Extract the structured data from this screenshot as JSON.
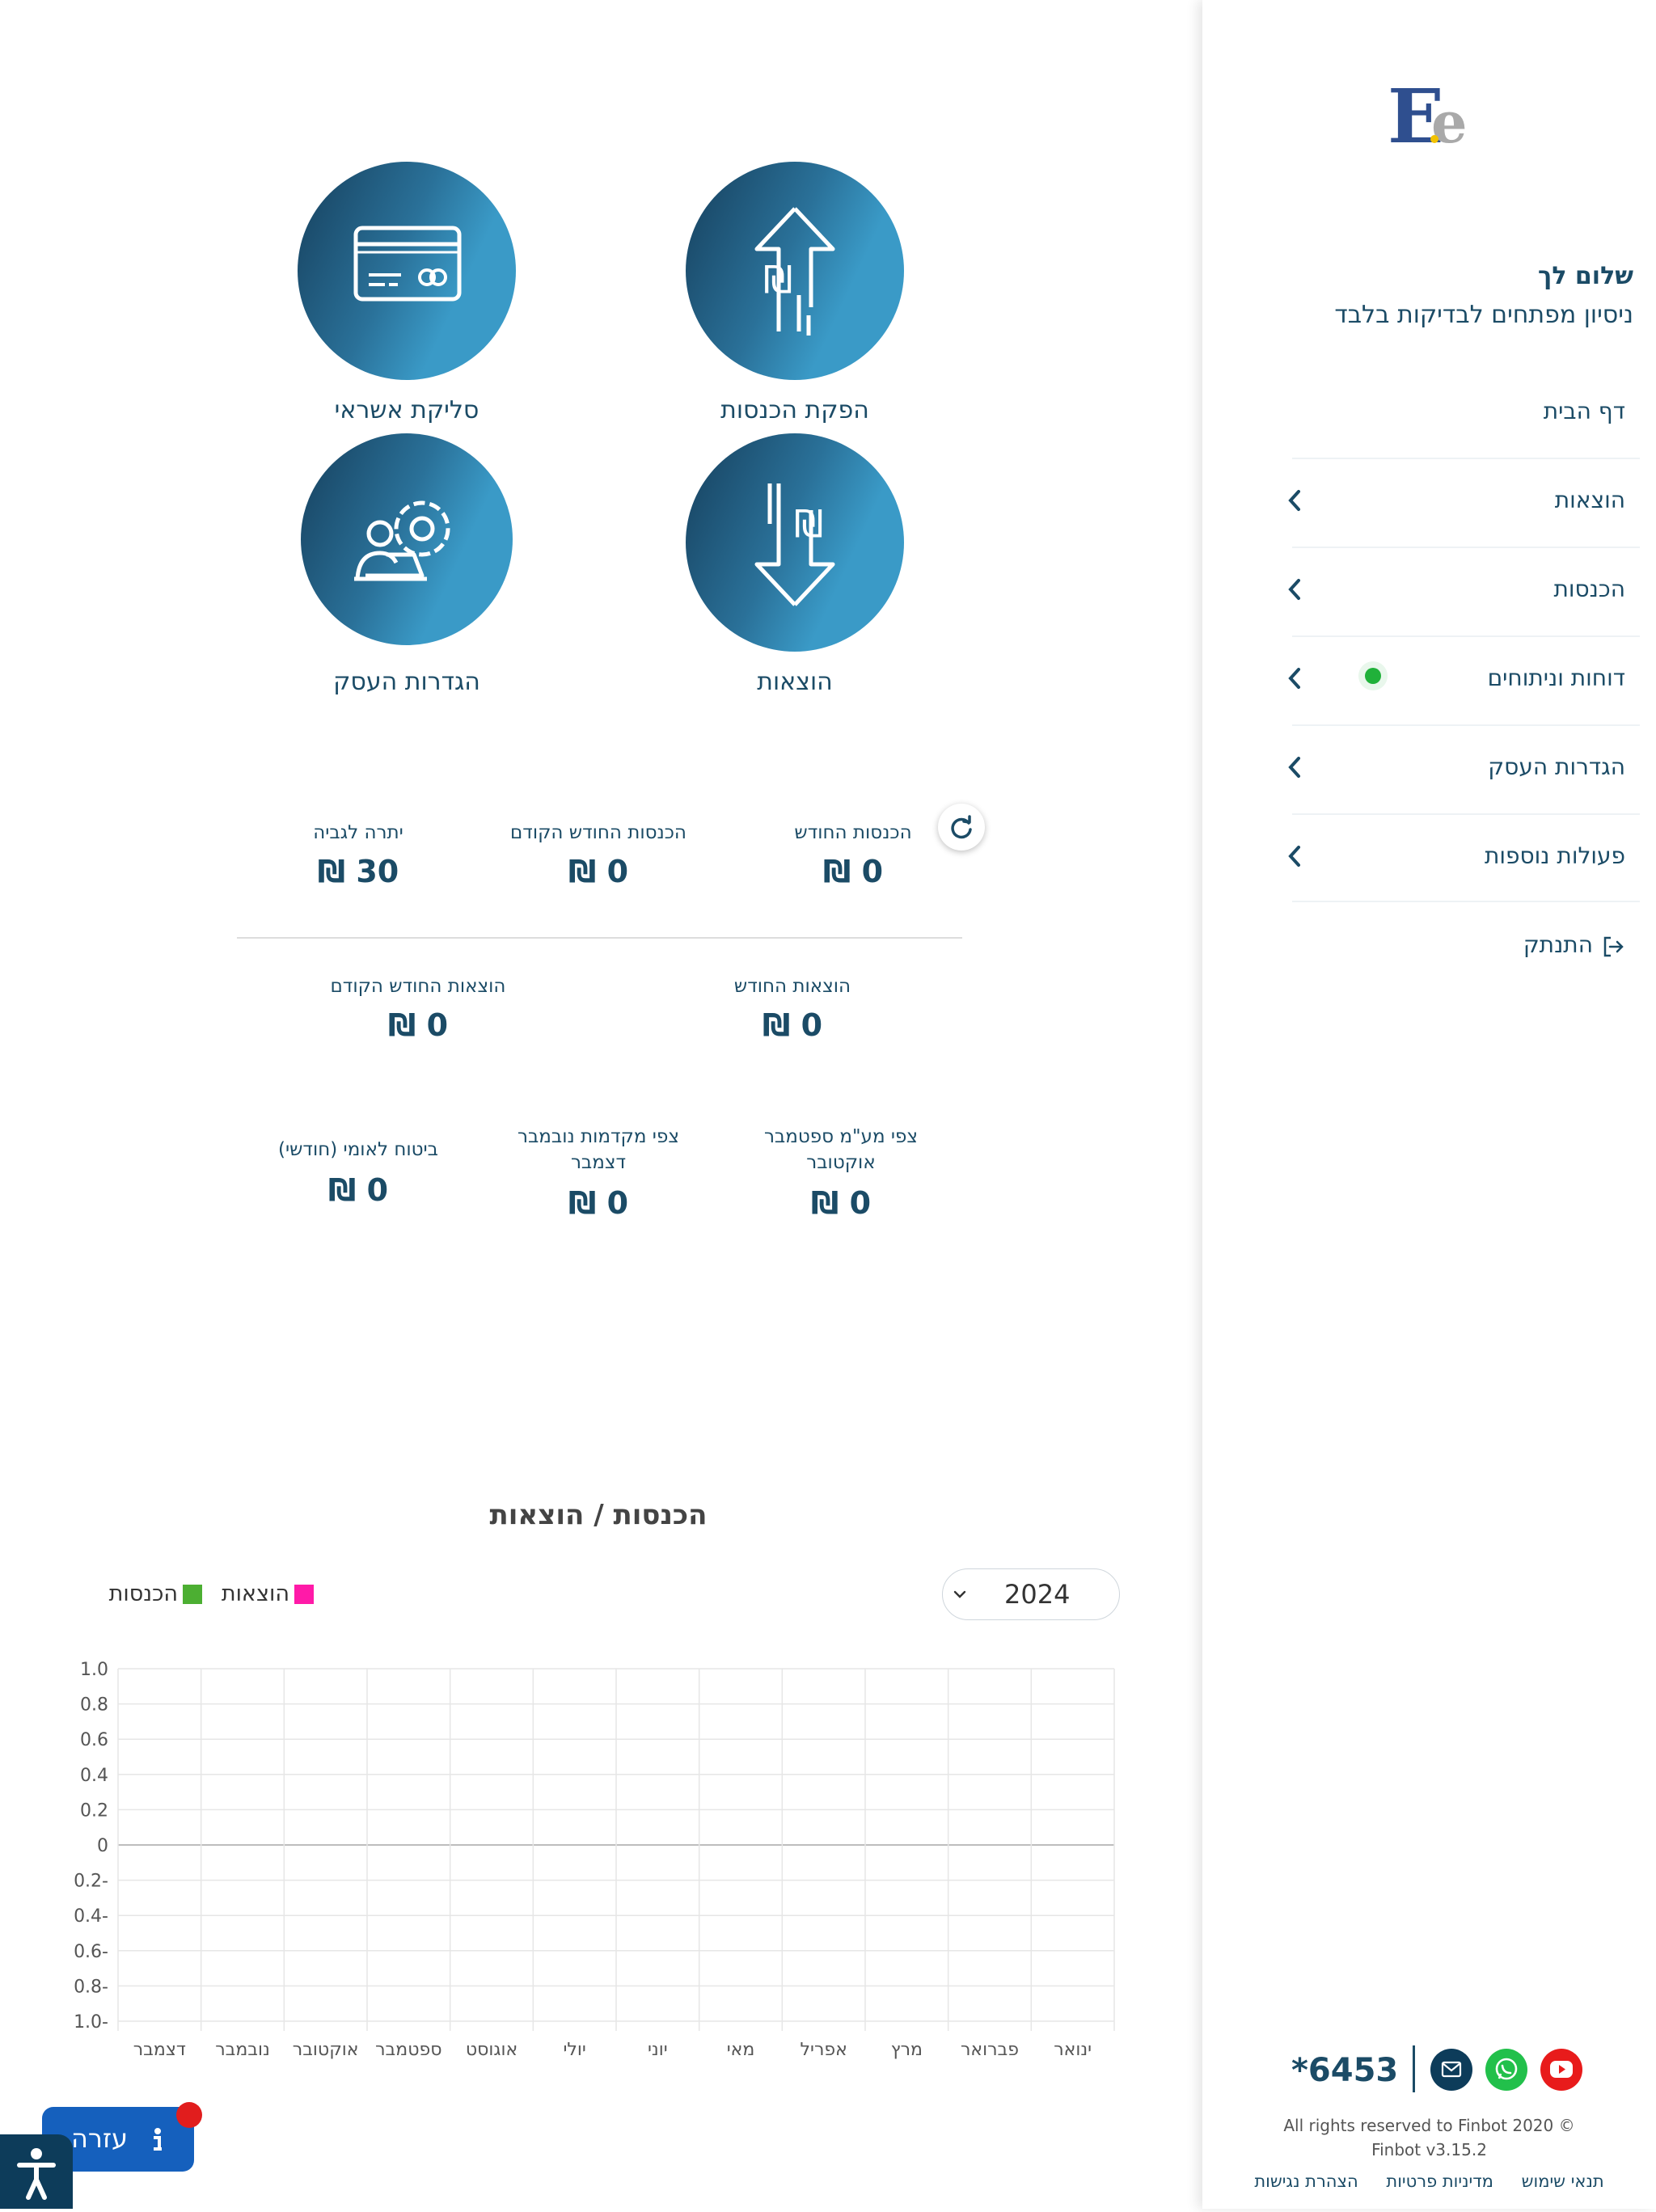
{
  "sidebar": {
    "logo_letters": "Ee",
    "greeting": "שלום לך",
    "business_name": "ניסיון מפתחים לבדיקות בלבד",
    "items": [
      {
        "label": "דף הבית"
      },
      {
        "label": "הוצאות"
      },
      {
        "label": "הכנסות"
      },
      {
        "label": "דוחות וניתוחים"
      },
      {
        "label": "הגדרות העסק"
      },
      {
        "label": "פעולות נוספות"
      },
      {
        "label": "התנתק"
      }
    ],
    "phone_code": "*6453",
    "copyright_line1": "All rights reserved to Finbot 2020 ©",
    "copyright_line2": "Finbot v3.15.2",
    "footer_links": [
      "תנאי שימוש",
      "מדיניות פרטיות",
      "הצהרת נגישות"
    ]
  },
  "tiles": [
    {
      "label": "הפקת הכנסות",
      "icon": "shekel-arrow-up-icon"
    },
    {
      "label": "סליקת אשראי",
      "icon": "credit-card-icon"
    },
    {
      "label": "הוצאות",
      "icon": "shekel-arrow-down-icon"
    },
    {
      "label": "הגדרות העסק",
      "icon": "user-settings-icon"
    }
  ],
  "stats": {
    "income_month": {
      "title": "הכנסות החודש",
      "value": "0 ₪"
    },
    "income_prev": {
      "title": "הכנסות החודש הקודם",
      "value": "0 ₪"
    },
    "balance_due": {
      "title": "יתרה לגביה",
      "value": "30 ₪"
    },
    "expenses_month": {
      "title": "הוצאות החודש",
      "value": "0 ₪"
    },
    "expenses_prev": {
      "title": "הוצאות החודש הקודם",
      "value": "0 ₪"
    },
    "vat_forecast": {
      "title": "צפי מע\"מ ספטמבר אוקטובר",
      "value": "0 ₪"
    },
    "advances_forecast": {
      "title": "צפי מקדמות נובמבר דצמבר",
      "value": "0 ₪"
    },
    "national_insurance": {
      "title": "ביטוח לאומי (חודשי)",
      "value": "0 ₪"
    }
  },
  "chart_data": {
    "type": "bar",
    "title": "הכנסות / הוצאות",
    "year": "2024",
    "categories": [
      "ינואר",
      "פברואר",
      "מרץ",
      "אפריל",
      "מאי",
      "יוני",
      "יולי",
      "אוגוסט",
      "ספטמבר",
      "אוקטובר",
      "נובמבר",
      "דצמבר"
    ],
    "series": [
      {
        "name": "הכנסות",
        "values": [
          0,
          0,
          0,
          0,
          0,
          0,
          0,
          0,
          0,
          0,
          0,
          0
        ],
        "color": "#4caf32"
      },
      {
        "name": "הוצאות",
        "values": [
          0,
          0,
          0,
          0,
          0,
          0,
          0,
          0,
          0,
          0,
          0,
          0
        ],
        "color": "#ff1aa8"
      }
    ],
    "ylim": [
      -1.0,
      1.0
    ],
    "yticks": [
      "1.0",
      "0.8",
      "0.6",
      "0.4",
      "0.2",
      "0",
      "0.2-",
      "0.4-",
      "0.6-",
      "0.8-",
      "1.0-"
    ],
    "grid": true,
    "legend": "top-left"
  },
  "help": {
    "label": "עזרה"
  },
  "colors": {
    "primary": "#1b4b66",
    "accent": "#3a9ac7",
    "help": "#1560bd"
  }
}
